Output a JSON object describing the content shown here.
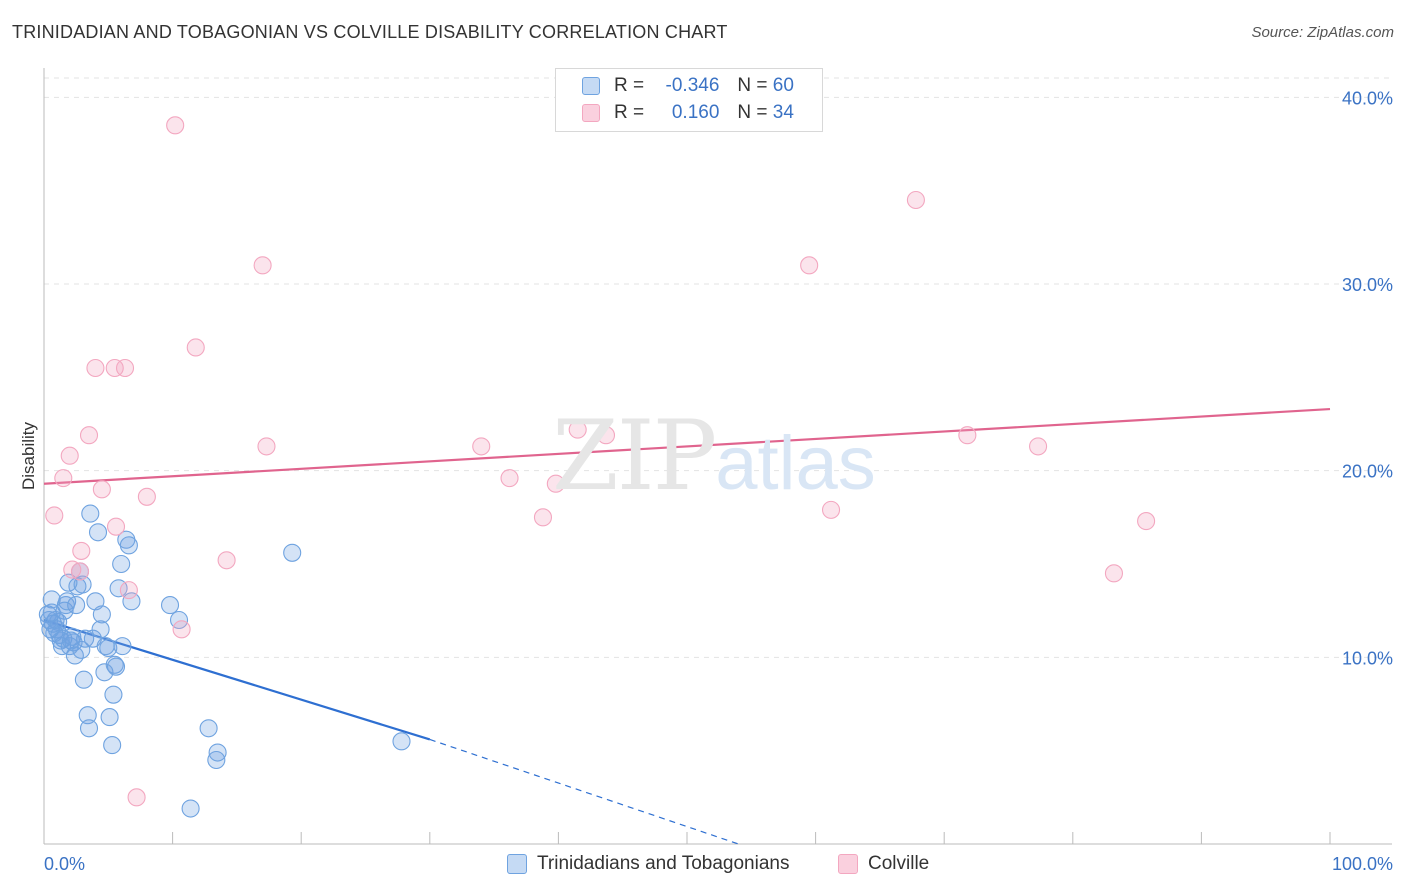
{
  "header": {
    "title": "TRINIDADIAN AND TOBAGONIAN VS COLVILLE DISABILITY CORRELATION CHART",
    "source": "Source: ZipAtlas.com"
  },
  "legend": {
    "rows": [
      {
        "r_label": "R =",
        "r_value": "-0.346",
        "n_label": "N =",
        "n_value": "60"
      },
      {
        "r_label": "R =",
        "r_value": "0.160",
        "n_label": "N =",
        "n_value": "34"
      }
    ]
  },
  "watermark": {
    "zip": "ZIP",
    "atlas": "atlas"
  },
  "chart_data": {
    "type": "scatter",
    "ylabel": "Disability",
    "xlim": [
      0,
      100
    ],
    "ylim": [
      0,
      42
    ],
    "x_tick_labels": [
      "0.0%",
      "100.0%"
    ],
    "y_ticks": [
      10,
      20,
      30,
      40
    ],
    "y_tick_labels": [
      "10.0%",
      "20.0%",
      "30.0%",
      "40.0%"
    ],
    "grid": true,
    "legend_position": "top-center",
    "series": [
      {
        "name": "Trinidadians and Tobagonians",
        "color": "#6fa3e0",
        "line_color": "#2e6fd1",
        "trend": {
          "x0": 0,
          "y0": 12.0,
          "x1": 30,
          "y1": 5.6,
          "dashed_to_x": 54,
          "dashed_to_y": 0
        },
        "points": [
          [
            0.3,
            12.3
          ],
          [
            0.4,
            12.0
          ],
          [
            0.5,
            11.5
          ],
          [
            0.6,
            13.1
          ],
          [
            0.7,
            11.8
          ],
          [
            0.8,
            11.3
          ],
          [
            0.9,
            12.0
          ],
          [
            1.0,
            11.5
          ],
          [
            1.1,
            11.9
          ],
          [
            1.2,
            11.2
          ],
          [
            1.3,
            10.9
          ],
          [
            1.4,
            10.6
          ],
          [
            1.5,
            11.0
          ],
          [
            1.6,
            12.5
          ],
          [
            1.7,
            12.8
          ],
          [
            1.8,
            13.0
          ],
          [
            1.9,
            14.0
          ],
          [
            2.0,
            10.6
          ],
          [
            2.2,
            11.1
          ],
          [
            2.3,
            10.8
          ],
          [
            2.4,
            10.1
          ],
          [
            2.5,
            12.8
          ],
          [
            2.6,
            13.8
          ],
          [
            2.8,
            14.6
          ],
          [
            2.9,
            10.4
          ],
          [
            3.0,
            13.9
          ],
          [
            3.1,
            8.8
          ],
          [
            3.2,
            11.0
          ],
          [
            3.4,
            6.9
          ],
          [
            3.5,
            6.2
          ],
          [
            3.6,
            17.7
          ],
          [
            3.8,
            11.0
          ],
          [
            4.0,
            13.0
          ],
          [
            4.2,
            16.7
          ],
          [
            4.4,
            11.5
          ],
          [
            4.5,
            12.3
          ],
          [
            4.7,
            9.2
          ],
          [
            4.8,
            10.6
          ],
          [
            5.0,
            10.5
          ],
          [
            5.1,
            6.8
          ],
          [
            5.3,
            5.3
          ],
          [
            5.4,
            8.0
          ],
          [
            5.5,
            9.6
          ],
          [
            5.6,
            9.5
          ],
          [
            5.8,
            13.7
          ],
          [
            6.0,
            15.0
          ],
          [
            6.1,
            10.6
          ],
          [
            6.4,
            16.3
          ],
          [
            6.6,
            16.0
          ],
          [
            6.8,
            13.0
          ],
          [
            9.8,
            12.8
          ],
          [
            10.5,
            12.0
          ],
          [
            11.4,
            1.9
          ],
          [
            12.8,
            6.2
          ],
          [
            13.4,
            4.5
          ],
          [
            13.5,
            4.9
          ],
          [
            19.3,
            15.6
          ],
          [
            27.8,
            5.5
          ],
          [
            0.6,
            12.4
          ],
          [
            2.1,
            10.9
          ]
        ]
      },
      {
        "name": "Colville",
        "color": "#f3a7c0",
        "line_color": "#e0648e",
        "trend": {
          "x0": 0,
          "y0": 19.3,
          "x1": 100,
          "y1": 23.3
        },
        "points": [
          [
            0.8,
            17.6
          ],
          [
            1.5,
            19.6
          ],
          [
            2.0,
            20.8
          ],
          [
            2.2,
            14.7
          ],
          [
            2.8,
            14.6
          ],
          [
            2.9,
            15.7
          ],
          [
            3.5,
            21.9
          ],
          [
            4.0,
            25.5
          ],
          [
            4.5,
            19.0
          ],
          [
            5.5,
            25.5
          ],
          [
            5.6,
            17.0
          ],
          [
            6.3,
            25.5
          ],
          [
            6.6,
            13.6
          ],
          [
            7.2,
            2.5
          ],
          [
            8.0,
            18.6
          ],
          [
            10.2,
            38.5
          ],
          [
            10.7,
            11.5
          ],
          [
            11.8,
            26.6
          ],
          [
            14.2,
            15.2
          ],
          [
            17.0,
            31.0
          ],
          [
            17.3,
            21.3
          ],
          [
            34.0,
            21.3
          ],
          [
            36.2,
            19.6
          ],
          [
            38.8,
            17.5
          ],
          [
            39.8,
            19.3
          ],
          [
            41.5,
            22.2
          ],
          [
            43.7,
            21.9
          ],
          [
            59.5,
            31.0
          ],
          [
            61.2,
            17.9
          ],
          [
            67.8,
            34.5
          ],
          [
            71.8,
            21.9
          ],
          [
            77.3,
            21.3
          ],
          [
            83.2,
            14.5
          ],
          [
            85.7,
            17.3
          ]
        ]
      }
    ]
  }
}
